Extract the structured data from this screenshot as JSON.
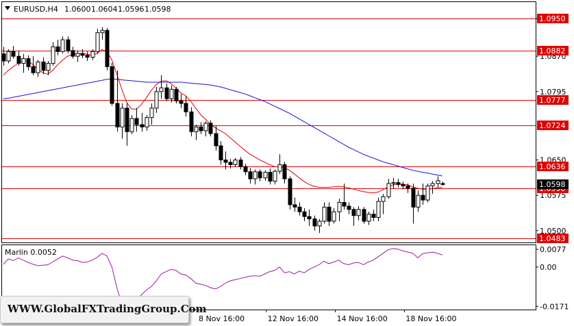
{
  "header": {
    "symbol": "EURUSD,H4",
    "open": "1.0600",
    "high": "1.0604",
    "low": "1.0596",
    "close": "1.0598"
  },
  "watermark": "WWW.GlobalFXTradingGroup.Com",
  "colors": {
    "candle": "#000000",
    "level_line": "#e00000",
    "fast_ma": "#e00000",
    "slow_ma": "#1414d8",
    "oscillator": "#9b1aa0",
    "label_bg": "#e00000",
    "current_price_bg": "#000000"
  },
  "chart_data": [
    {
      "type": "candlestick",
      "title": "EURUSD,H4",
      "ylim": [
        1.0475,
        1.0985
      ],
      "y_ticks": [
        "1.0950",
        "1.0870",
        "1.0795",
        "1.0650",
        "1.0575",
        "1.0500"
      ],
      "x_ticks": [
        "8 Nov 16:00",
        "12 Nov 16:00",
        "14 Nov 16:00",
        "18 Nov 16:00"
      ],
      "grid": false,
      "current_price": "1.0598",
      "horizontal_levels": [
        "1.0950",
        "1.0882",
        "1.0777",
        "1.0724",
        "1.0636",
        "1.0590",
        "1.0483"
      ],
      "candles": [
        [
          1.0875,
          1.089,
          1.085,
          1.086
        ],
        [
          1.086,
          1.0885,
          1.0855,
          1.088
        ],
        [
          1.088,
          1.0892,
          1.0865,
          1.087
        ],
        [
          1.087,
          1.0882,
          1.085,
          1.0855
        ],
        [
          1.0855,
          1.0875,
          1.0835,
          1.0865
        ],
        [
          1.0865,
          1.0872,
          1.084,
          1.0848
        ],
        [
          1.0848,
          1.087,
          1.083,
          1.0835
        ],
        [
          1.0835,
          1.0862,
          1.0826,
          1.0858
        ],
        [
          1.0858,
          1.0868,
          1.0832,
          1.084
        ],
        [
          1.084,
          1.086,
          1.083,
          1.0855
        ],
        [
          1.0855,
          1.09,
          1.085,
          1.089
        ],
        [
          1.089,
          1.0905,
          1.0872,
          1.088
        ],
        [
          1.088,
          1.0912,
          1.0876,
          1.0905
        ],
        [
          1.0905,
          1.0912,
          1.0876,
          1.0882
        ],
        [
          1.0882,
          1.089,
          1.0865,
          1.087
        ],
        [
          1.087,
          1.0882,
          1.0858,
          1.0876
        ],
        [
          1.0876,
          1.0885,
          1.0866,
          1.0872
        ],
        [
          1.0872,
          1.088,
          1.086,
          1.0868
        ],
        [
          1.0868,
          1.0885,
          1.0862,
          1.088
        ],
        [
          1.088,
          1.0928,
          1.0875,
          1.092
        ],
        [
          1.092,
          1.0932,
          1.0905,
          1.0925
        ],
        [
          1.0925,
          1.093,
          1.084,
          1.0848
        ],
        [
          1.0848,
          1.0856,
          1.0765,
          1.077
        ],
        [
          1.077,
          1.084,
          1.071,
          1.072
        ],
        [
          1.072,
          1.077,
          1.0695,
          1.076
        ],
        [
          1.076,
          1.077,
          1.068,
          1.071
        ],
        [
          1.071,
          1.0745,
          1.0705,
          1.0738
        ],
        [
          1.0738,
          1.076,
          1.071,
          1.0725
        ],
        [
          1.0725,
          1.075,
          1.071,
          1.072
        ],
        [
          1.072,
          1.0745,
          1.0712,
          1.074
        ],
        [
          1.074,
          1.077,
          1.0725,
          1.076
        ],
        [
          1.076,
          1.0805,
          1.075,
          1.0795
        ],
        [
          1.0795,
          1.083,
          1.078,
          1.0803
        ],
        [
          1.0803,
          1.0812,
          1.0775,
          1.078
        ],
        [
          1.078,
          1.0808,
          1.0772,
          1.08
        ],
        [
          1.08,
          1.0805,
          1.077,
          1.0775
        ],
        [
          1.0775,
          1.079,
          1.076,
          1.077
        ],
        [
          1.077,
          1.0785,
          1.0742,
          1.0752
        ],
        [
          1.0752,
          1.0762,
          1.07,
          1.071
        ],
        [
          1.071,
          1.0725,
          1.0692,
          1.072
        ],
        [
          1.072,
          1.073,
          1.0705,
          1.0712
        ],
        [
          1.0712,
          1.0732,
          1.07,
          1.0728
        ],
        [
          1.0728,
          1.0734,
          1.07,
          1.0706
        ],
        [
          1.0706,
          1.0722,
          1.067,
          1.068
        ],
        [
          1.068,
          1.069,
          1.064,
          1.065
        ],
        [
          1.065,
          1.0668,
          1.063,
          1.0645
        ],
        [
          1.0645,
          1.0652,
          1.0632,
          1.064
        ],
        [
          1.064,
          1.0654,
          1.0636,
          1.065
        ],
        [
          1.065,
          1.0656,
          1.063,
          1.0636
        ],
        [
          1.0636,
          1.0642,
          1.0618,
          1.0625
        ],
        [
          1.0625,
          1.0633,
          1.06,
          1.061
        ],
        [
          1.061,
          1.063,
          1.0598,
          1.0625
        ],
        [
          1.0625,
          1.063,
          1.0605,
          1.0612
        ],
        [
          1.0612,
          1.0628,
          1.0606,
          1.0624
        ],
        [
          1.0624,
          1.0632,
          1.0598,
          1.0605
        ],
        [
          1.0605,
          1.063,
          1.0598,
          1.0626
        ],
        [
          1.0626,
          1.0662,
          1.062,
          1.064
        ],
        [
          1.064,
          1.0646,
          1.06,
          1.061
        ],
        [
          1.061,
          1.0615,
          1.0545,
          1.0555
        ],
        [
          1.0555,
          1.057,
          1.054,
          1.055
        ],
        [
          1.055,
          1.056,
          1.0532,
          1.054
        ],
        [
          1.054,
          1.0548,
          1.052,
          1.053
        ],
        [
          1.053,
          1.0545,
          1.051,
          1.0525
        ],
        [
          1.0525,
          1.0532,
          1.05,
          1.051
        ],
        [
          1.051,
          1.0525,
          1.0495,
          1.052
        ],
        [
          1.052,
          1.056,
          1.0515,
          1.055
        ],
        [
          1.055,
          1.056,
          1.051,
          1.052
        ],
        [
          1.052,
          1.0548,
          1.0515,
          1.054
        ],
        [
          1.054,
          1.0568,
          1.052,
          1.056
        ],
        [
          1.056,
          1.06,
          1.0545,
          1.0552
        ],
        [
          1.0552,
          1.056,
          1.0535,
          1.0545
        ],
        [
          1.0545,
          1.055,
          1.051,
          1.0532
        ],
        [
          1.0532,
          1.0552,
          1.0522,
          1.0545
        ],
        [
          1.0545,
          1.055,
          1.0515,
          1.052
        ],
        [
          1.052,
          1.054,
          1.0512,
          1.0535
        ],
        [
          1.0535,
          1.0545,
          1.052,
          1.0528
        ],
        [
          1.0528,
          1.057,
          1.052,
          1.0562
        ],
        [
          1.0562,
          1.0578,
          1.0535,
          1.0572
        ],
        [
          1.0572,
          1.061,
          1.0568,
          1.06
        ],
        [
          1.06,
          1.0612,
          1.059,
          1.0602
        ],
        [
          1.0602,
          1.061,
          1.0592,
          1.0598
        ],
        [
          1.0598,
          1.0604,
          1.0588,
          1.0595
        ],
        [
          1.0595,
          1.06,
          1.058,
          1.059
        ],
        [
          1.059,
          1.06,
          1.0515,
          1.055
        ],
        [
          1.055,
          1.0585,
          1.054,
          1.0575
        ],
        [
          1.0575,
          1.06,
          1.0555,
          1.0565
        ],
        [
          1.0565,
          1.06,
          1.056,
          1.0595
        ],
        [
          1.0595,
          1.0605,
          1.0578,
          1.06
        ],
        [
          1.06,
          1.0615,
          1.0592,
          1.0606
        ],
        [
          1.06,
          1.0604,
          1.0596,
          1.0598
        ]
      ],
      "series": [
        {
          "values": [
            1.083,
            1.084,
            1.0848,
            1.0855,
            1.086,
            1.086,
            1.0852,
            1.0842,
            1.0835,
            1.0832,
            1.084,
            1.0852,
            1.0862,
            1.087,
            1.0874,
            1.0876,
            1.0876,
            1.0874,
            1.0872,
            1.0876,
            1.0884,
            1.088,
            1.0862,
            1.0832,
            1.08,
            1.0772,
            1.0758,
            1.0758,
            1.0768,
            1.0782,
            1.0798,
            1.081,
            1.0817,
            1.0818,
            1.0812,
            1.0802,
            1.0792,
            1.0786,
            1.0774,
            1.076,
            1.0746,
            1.0736,
            1.0726,
            1.0718,
            1.0712,
            1.0706,
            1.0697,
            1.0688,
            1.0679,
            1.067,
            1.0662,
            1.0656,
            1.065,
            1.0645,
            1.064,
            1.0636,
            1.0635,
            1.0634,
            1.0628,
            1.062,
            1.0612,
            1.0604,
            1.0598,
            1.0594,
            1.0592,
            1.0592,
            1.0592,
            1.0593,
            1.0594,
            1.0593,
            1.0591,
            1.0588,
            1.0585,
            1.0583,
            1.0581,
            1.058,
            1.0582,
            1.0587,
            1.0593,
            1.0597,
            1.0599,
            1.0599,
            1.0597,
            1.0593,
            1.059,
            1.0588,
            1.0588,
            1.0589,
            1.0591,
            1.0592
          ]
        },
        {
          "values": [
            1.078,
            1.0781,
            1.0783,
            1.0785,
            1.0787,
            1.0789,
            1.0791,
            1.0793,
            1.0795,
            1.0797,
            1.0799,
            1.0801,
            1.0803,
            1.0805,
            1.0807,
            1.0809,
            1.0811,
            1.0813,
            1.0815,
            1.0817,
            1.0819,
            1.0821,
            1.0822,
            1.0821,
            1.082,
            1.0819,
            1.0818,
            1.0817,
            1.0816,
            1.0815,
            1.0815,
            1.0815,
            1.0815,
            1.0815,
            1.0815,
            1.0815,
            1.0815,
            1.0814,
            1.0813,
            1.0812,
            1.0811,
            1.081,
            1.0809,
            1.0807,
            1.0805,
            1.0802,
            1.0799,
            1.0796,
            1.0793,
            1.079,
            1.0786,
            1.0782,
            1.0778,
            1.0774,
            1.0769,
            1.0764,
            1.0759,
            1.0754,
            1.0749,
            1.0743,
            1.0737,
            1.0731,
            1.0725,
            1.0719,
            1.0713,
            1.0707,
            1.0701,
            1.0695,
            1.0689,
            1.0683,
            1.0677,
            1.0672,
            1.0667,
            1.0662,
            1.0658,
            1.0654,
            1.065,
            1.0646,
            1.0643,
            1.064,
            1.0637,
            1.0634,
            1.0631,
            1.0628,
            1.0626,
            1.0624,
            1.0622,
            1.062,
            1.0618,
            1.0616
          ]
        }
      ]
    },
    {
      "type": "line",
      "title": "Marlin 0.0052",
      "ylim": [
        -0.0185,
        0.0095
      ],
      "y_ticks": [
        "0.0077",
        "0.00",
        "-0.0171"
      ],
      "series": [
        {
          "name": "Marlin",
          "values": [
            0.0012,
            0.0035,
            0.0028,
            0.004,
            0.003,
            0.002,
            0.0012,
            0.0006,
            0.0008,
            0.001,
            0.0022,
            0.0035,
            0.0048,
            0.004,
            0.003,
            0.0028,
            0.002,
            0.0022,
            0.003,
            0.0042,
            0.006,
            0.0048,
            0.0,
            -0.009,
            -0.016,
            -0.018,
            -0.017,
            -0.015,
            -0.012,
            -0.01,
            -0.0085,
            -0.006,
            -0.003,
            -0.002,
            -0.001,
            -0.0015,
            -0.003,
            -0.0035,
            -0.005,
            -0.007,
            -0.0075,
            -0.008,
            -0.009,
            -0.0095,
            -0.0085,
            -0.007,
            -0.006,
            -0.0055,
            -0.005,
            -0.0045,
            -0.004,
            -0.0038,
            -0.004,
            -0.003,
            -0.002,
            -0.0015,
            0.0,
            -0.0025,
            -0.002,
            -0.003,
            -0.0018,
            -0.0025,
            -0.001,
            0.0,
            0.001,
            0.0025,
            0.0015,
            0.0022,
            0.003,
            0.0015,
            0.001,
            0.0018,
            0.002,
            0.001,
            0.0022,
            0.003,
            0.0045,
            0.006,
            0.0075,
            0.008,
            0.0078,
            0.007,
            0.0065,
            0.006,
            0.004,
            0.0058,
            0.0062,
            0.0065,
            0.006,
            0.0052
          ]
        }
      ]
    }
  ]
}
